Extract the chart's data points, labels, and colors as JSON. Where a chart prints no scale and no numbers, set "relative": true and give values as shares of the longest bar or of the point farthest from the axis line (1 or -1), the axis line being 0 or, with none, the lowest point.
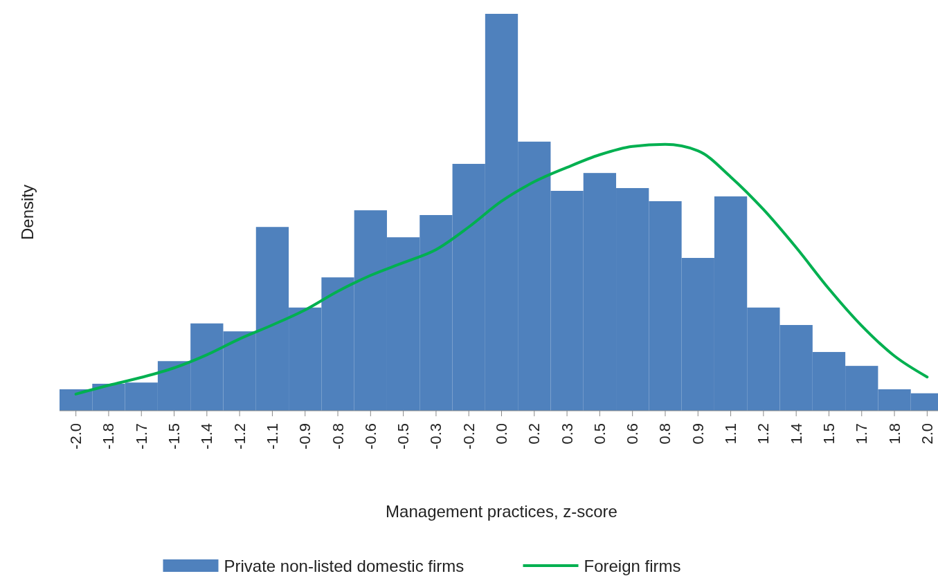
{
  "chart_data": {
    "type": "bar",
    "relative": true,
    "xlabel": "Management practices, z-score",
    "ylabel": "Density",
    "legend": "bottom",
    "categories": [
      "-2.0",
      "-1.8",
      "-1.7",
      "-1.5",
      "-1.4",
      "-1.2",
      "-1.1",
      "-0.9",
      "-0.8",
      "-0.6",
      "-0.5",
      "-0.3",
      "-0.2",
      "0.0",
      "0.2",
      "0.3",
      "0.5",
      "0.6",
      "0.8",
      "0.9",
      "1.1",
      "1.2",
      "1.4",
      "1.5",
      "1.7",
      "1.8",
      "2.0"
    ],
    "series": [
      {
        "name": "Private non-listed domestic firms",
        "color": "#4f81bd",
        "values": [
          0.054,
          0.068,
          0.071,
          0.125,
          0.22,
          0.2,
          0.463,
          0.26,
          0.336,
          0.505,
          0.437,
          0.493,
          0.622,
          1,
          0.678,
          0.554,
          0.599,
          0.561,
          0.528,
          0.385,
          0.54,
          0.26,
          0.216,
          0.148,
          0.113,
          0.054,
          0.044
        ]
      },
      {
        "name": "Foreign firms",
        "type": "line",
        "color": "#00b050",
        "values": [
          0.042,
          0.064,
          0.084,
          0.108,
          0.141,
          0.181,
          0.216,
          0.254,
          0.301,
          0.341,
          0.373,
          0.406,
          0.463,
          0.528,
          0.577,
          0.613,
          0.645,
          0.666,
          0.671,
          0.655,
          0.589,
          0.507,
          0.411,
          0.307,
          0.214,
          0.138,
          0.085
        ]
      }
    ]
  }
}
